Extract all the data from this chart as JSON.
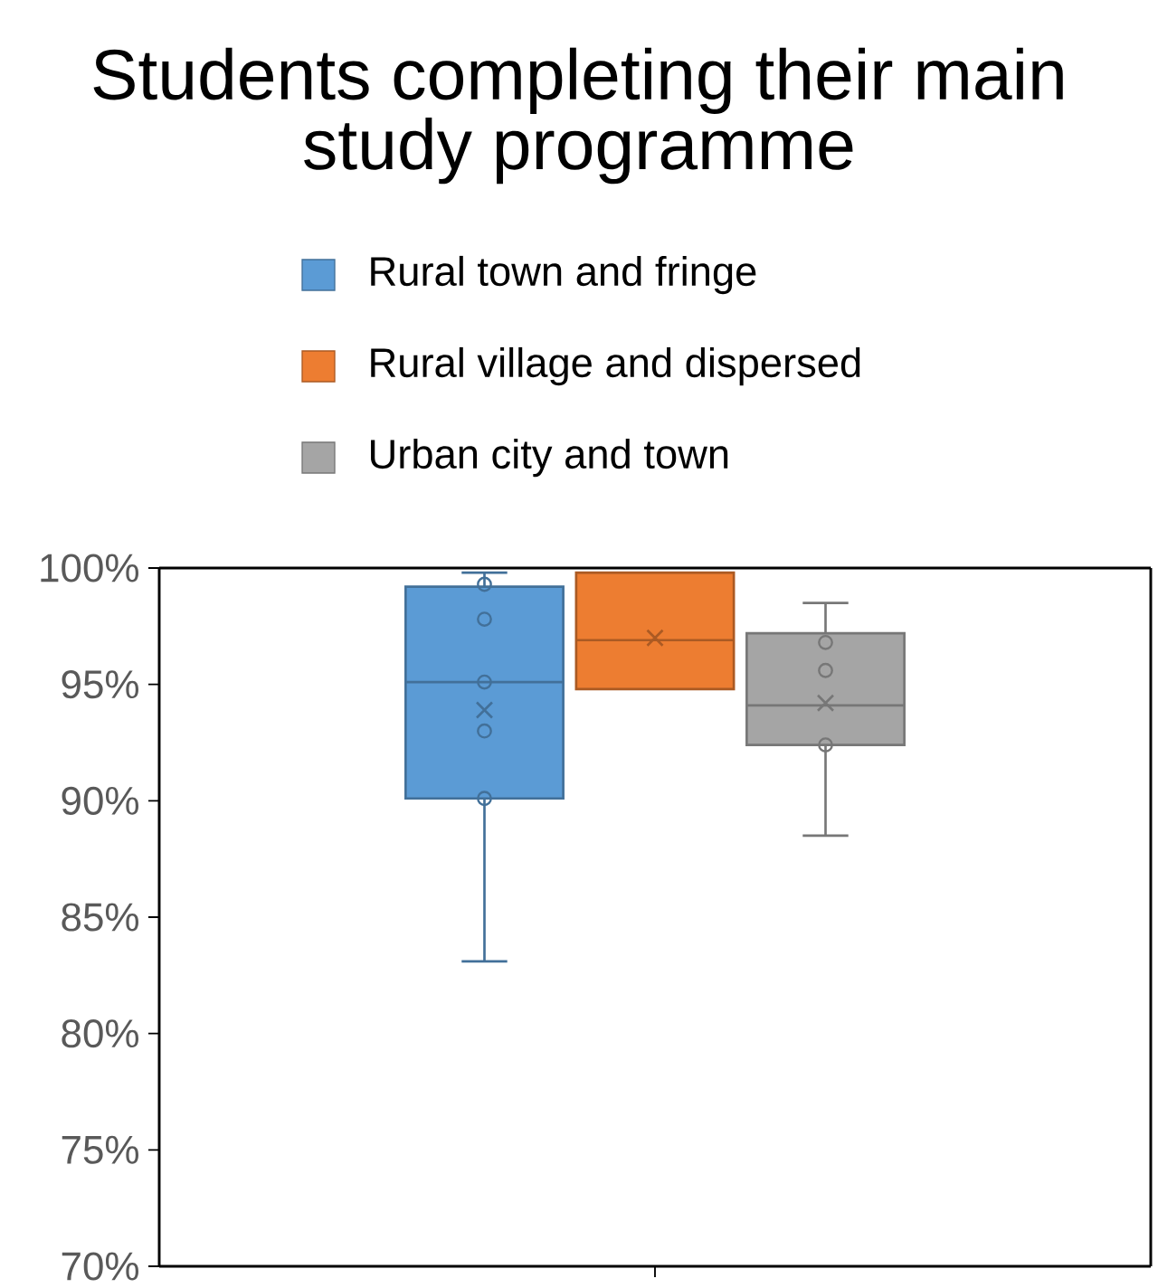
{
  "chart_data": {
    "type": "box",
    "title": "Students completing their main study programme",
    "categories": [
      null
    ],
    "series": [
      {
        "name": "Rural town and fringe",
        "color": "#5b9bd5",
        "boxes": [
          {
            "low": 83.1,
            "q1": 90.1,
            "median": 95.1,
            "q3": 99.2,
            "high": 99.8,
            "mean": 93.9,
            "outliers": [
              99.3,
              97.8,
              95.1,
              93.0,
              90.1
            ]
          }
        ]
      },
      {
        "name": "Rural village and dispersed",
        "color": "#ed7d31",
        "boxes": [
          {
            "low": 94.8,
            "q1": 94.8,
            "median": 96.9,
            "q3": 99.8,
            "high": 99.8,
            "mean": 97.0
          }
        ]
      },
      {
        "name": "Urban city and town",
        "color": "#a5a5a5",
        "boxes": [
          {
            "low": 88.5,
            "q1": 92.4,
            "median": 94.1,
            "q3": 97.2,
            "high": 98.5,
            "mean": 94.2,
            "outliers": [
              96.8,
              95.6,
              92.4
            ]
          }
        ]
      }
    ],
    "ylim": [
      70,
      100
    ],
    "yticks": [
      {
        "value": 70,
        "label": "70%"
      },
      {
        "value": 75,
        "label": "75%"
      },
      {
        "value": 80,
        "label": "80%"
      },
      {
        "value": 85,
        "label": "85%"
      },
      {
        "value": 90,
        "label": "90%"
      },
      {
        "value": 95,
        "label": "95%"
      },
      {
        "value": 100,
        "label": "100%"
      }
    ],
    "legend": "top"
  }
}
